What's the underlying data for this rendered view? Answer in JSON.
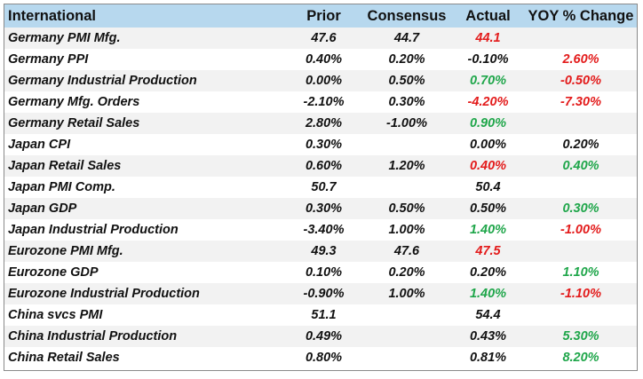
{
  "headers": {
    "name": "International",
    "prior": "Prior",
    "consensus": "Consensus",
    "actual": "Actual",
    "yoy": "YOY % Change"
  },
  "colors": {
    "header_bg": "#b7d8ee",
    "row_alt_bg": "#f2f2f2",
    "negative": "#e31b1b",
    "positive": "#1fa64a",
    "text": "#111111"
  },
  "rows": [
    {
      "name": "Germany PMI Mfg.",
      "prior": "47.6",
      "consensus": "44.7",
      "actual": "44.1",
      "actual_color": "red",
      "yoy": "",
      "yoy_color": ""
    },
    {
      "name": "Germany PPI",
      "prior": "0.40%",
      "consensus": "0.20%",
      "actual": "-0.10%",
      "actual_color": "",
      "yoy": "2.60%",
      "yoy_color": "red"
    },
    {
      "name": "Germany Industrial Production",
      "prior": "0.00%",
      "consensus": "0.50%",
      "actual": "0.70%",
      "actual_color": "green",
      "yoy": "-0.50%",
      "yoy_color": "red"
    },
    {
      "name": "Germany Mfg. Orders",
      "prior": "-2.10%",
      "consensus": "0.30%",
      "actual": "-4.20%",
      "actual_color": "red",
      "yoy": "-7.30%",
      "yoy_color": "red"
    },
    {
      "name": "Germany Retail Sales",
      "prior": "2.80%",
      "consensus": "-1.00%",
      "actual": "0.90%",
      "actual_color": "green",
      "yoy": "",
      "yoy_color": ""
    },
    {
      "name": "Japan CPI",
      "prior": "0.30%",
      "consensus": "",
      "actual": "0.00%",
      "actual_color": "",
      "yoy": "0.20%",
      "yoy_color": ""
    },
    {
      "name": "Japan Retail Sales",
      "prior": "0.60%",
      "consensus": "1.20%",
      "actual": "0.40%",
      "actual_color": "red",
      "yoy": "0.40%",
      "yoy_color": "green"
    },
    {
      "name": "Japan PMI Comp.",
      "prior": "50.7",
      "consensus": "",
      "actual": "50.4",
      "actual_color": "",
      "yoy": "",
      "yoy_color": ""
    },
    {
      "name": "Japan GDP",
      "prior": "0.30%",
      "consensus": "0.50%",
      "actual": "0.50%",
      "actual_color": "",
      "yoy": "0.30%",
      "yoy_color": "green"
    },
    {
      "name": "Japan Industrial Production",
      "prior": "-3.40%",
      "consensus": "1.00%",
      "actual": "1.40%",
      "actual_color": "green",
      "yoy": "-1.00%",
      "yoy_color": "red"
    },
    {
      "name": "Eurozone PMI Mfg.",
      "prior": "49.3",
      "consensus": "47.6",
      "actual": "47.5",
      "actual_color": "red",
      "yoy": "",
      "yoy_color": ""
    },
    {
      "name": "Eurozone GDP",
      "prior": "0.10%",
      "consensus": "0.20%",
      "actual": "0.20%",
      "actual_color": "",
      "yoy": "1.10%",
      "yoy_color": "green"
    },
    {
      "name": "Eurozone Industrial Production",
      "prior": "-0.90%",
      "consensus": "1.00%",
      "actual": "1.40%",
      "actual_color": "green",
      "yoy": "-1.10%",
      "yoy_color": "red"
    },
    {
      "name": "China svcs PMI",
      "prior": "51.1",
      "consensus": "",
      "actual": "54.4",
      "actual_color": "",
      "yoy": "",
      "yoy_color": ""
    },
    {
      "name": "China Industrial Production",
      "prior": "0.49%",
      "consensus": "",
      "actual": "0.43%",
      "actual_color": "",
      "yoy": "5.30%",
      "yoy_color": "green"
    },
    {
      "name": "China Retail Sales",
      "prior": "0.80%",
      "consensus": "",
      "actual": "0.81%",
      "actual_color": "",
      "yoy": "8.20%",
      "yoy_color": "green"
    }
  ]
}
